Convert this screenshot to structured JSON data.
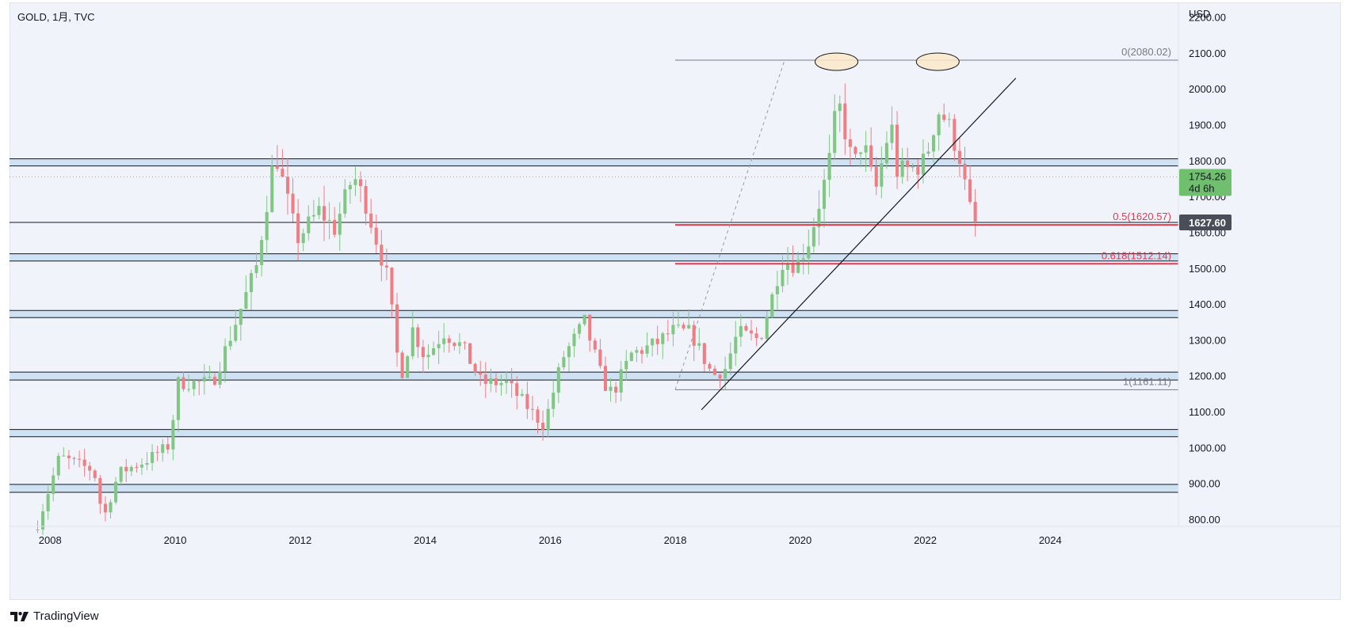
{
  "header": {
    "title": "GOLD, 1月, TVC"
  },
  "footer": {
    "brand": "TradingView"
  },
  "colors": {
    "up": "#81c784",
    "down": "#ef7e84",
    "zone": "#cfe2f3",
    "fib": "#e53950",
    "line": "#131722",
    "current": "#6fbf6f"
  },
  "chart_data": {
    "type": "candlestick",
    "symbol": "GOLD",
    "interval": "1月",
    "source": "TVC",
    "currency_label": "USD",
    "ylim": [
      780,
      2230
    ],
    "y_ticks": [
      800,
      900,
      1000,
      1100,
      1200,
      1300,
      1400,
      1500,
      1600,
      1700,
      1800,
      1900,
      2000,
      2100,
      2200
    ],
    "y_tick_labels": [
      "800.00",
      "900.00",
      "1000.00",
      "1100.00",
      "1200.00",
      "1300.00",
      "1400.00",
      "1500.00",
      "1600.00",
      "1700.00",
      "1800.00",
      "1900.00",
      "2000.00",
      "2100.00",
      "2200.00"
    ],
    "x_ticks": [
      "2008",
      "2010",
      "2012",
      "2014",
      "2016",
      "2018",
      "2020",
      "2022",
      "2024"
    ],
    "xlim": [
      2007.35,
      2026.05
    ],
    "last_price": {
      "label": "1754.26",
      "sublabel": "4d 6h",
      "value": 1754.26
    },
    "marked_level": {
      "label": "1627.60",
      "value": 1627.6
    },
    "zones": [
      [
        1785,
        1805
      ],
      [
        1520,
        1540
      ],
      [
        1362,
        1382
      ],
      [
        1188,
        1210
      ],
      [
        1030,
        1050
      ],
      [
        875,
        897
      ]
    ],
    "horizontal_lines": [
      1627.6
    ],
    "fibonacci": {
      "x_start": 2018.0,
      "x_end": 2025.5,
      "levels": [
        {
          "value": 2080.02,
          "label": "0(2080.02)",
          "kind": "gray"
        },
        {
          "value": 1620.57,
          "label": "0.5(1620.57)",
          "kind": "red"
        },
        {
          "value": 1512.14,
          "label": "0.618(1512.14)",
          "kind": "red"
        },
        {
          "value": 1161.11,
          "label": "1(1161.11)",
          "kind": "gray"
        }
      ],
      "anchor_start": [
        2018.0,
        1161.11
      ],
      "anchor_end": [
        2019.75,
        2080.02
      ]
    },
    "trendline": {
      "start": [
        2018.42,
        1105
      ],
      "end": [
        2023.45,
        2030
      ]
    },
    "highlights": [
      {
        "x": 2020.58,
        "y": 2080
      },
      {
        "x": 2022.2,
        "y": 2080
      }
    ],
    "anchors": [
      [
        2007.8,
        785
      ],
      [
        2008.15,
        975
      ],
      [
        2008.7,
        935
      ],
      [
        2008.85,
        800
      ],
      [
        2009.1,
        930
      ],
      [
        2009.5,
        960
      ],
      [
        2009.9,
        1005
      ],
      [
        2010.05,
        1180
      ],
      [
        2010.6,
        1180
      ],
      [
        2010.95,
        1340
      ],
      [
        2011.3,
        1505
      ],
      [
        2011.6,
        1825
      ],
      [
        2011.8,
        1685
      ],
      [
        2011.95,
        1580
      ],
      [
        2012.3,
        1660
      ],
      [
        2012.55,
        1610
      ],
      [
        2012.85,
        1760
      ],
      [
        2013.05,
        1680
      ],
      [
        2013.4,
        1470
      ],
      [
        2013.6,
        1190
      ],
      [
        2013.8,
        1330
      ],
      [
        2014.0,
        1250
      ],
      [
        2014.3,
        1320
      ],
      [
        2014.6,
        1280
      ],
      [
        2014.9,
        1180
      ],
      [
        2015.3,
        1180
      ],
      [
        2015.6,
        1120
      ],
      [
        2015.9,
        1060
      ],
      [
        2016.2,
        1250
      ],
      [
        2016.55,
        1350
      ],
      [
        2016.85,
        1180
      ],
      [
        2017.0,
        1150
      ],
      [
        2017.3,
        1260
      ],
      [
        2017.7,
        1290
      ],
      [
        2017.95,
        1325
      ],
      [
        2018.25,
        1320
      ],
      [
        2018.6,
        1200
      ],
      [
        2018.8,
        1220
      ],
      [
        2019.0,
        1320
      ],
      [
        2019.35,
        1300
      ],
      [
        2019.55,
        1420
      ],
      [
        2019.7,
        1520
      ],
      [
        2019.95,
        1510
      ],
      [
        2020.15,
        1580
      ],
      [
        2020.45,
        1780
      ],
      [
        2020.6,
        1970
      ],
      [
        2020.85,
        1780
      ],
      [
        2021.0,
        1860
      ],
      [
        2021.2,
        1710
      ],
      [
        2021.45,
        1910
      ],
      [
        2021.55,
        1770
      ],
      [
        2021.85,
        1780
      ],
      [
        2022.0,
        1800
      ],
      [
        2022.2,
        1940
      ],
      [
        2022.35,
        1910
      ],
      [
        2022.55,
        1810
      ],
      [
        2022.7,
        1670
      ],
      [
        2022.8,
        1630
      ],
      [
        2022.88,
        1754.26
      ]
    ]
  }
}
